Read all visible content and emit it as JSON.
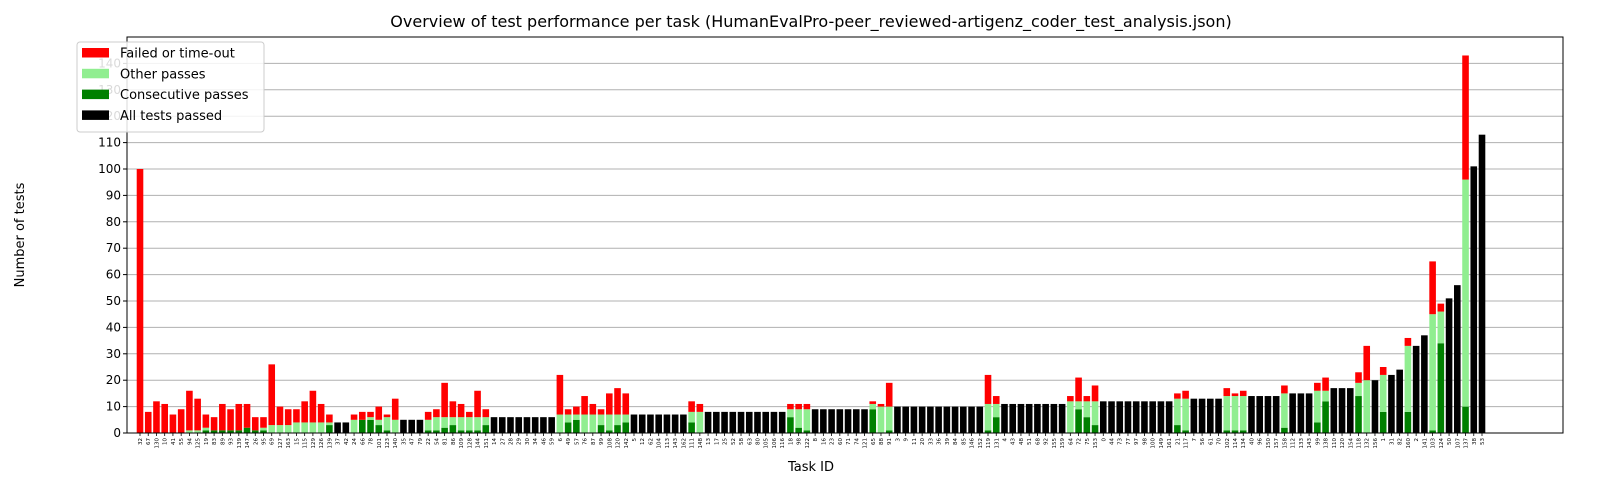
{
  "chart_data": {
    "type": "bar",
    "stacked": true,
    "title": "Overview of test performance per task (HumanEvalPro-peer_reviewed-artigenz_coder_test_analysis.json)",
    "xlabel": "Task ID",
    "ylabel": "Number of tests",
    "ylim": [
      0,
      150
    ],
    "yticks": [
      0,
      10,
      20,
      30,
      40,
      50,
      60,
      70,
      80,
      90,
      100,
      110,
      120,
      130,
      140
    ],
    "grid": "horizontal",
    "legend_position": "top-left",
    "colors": {
      "failed": "#ff0000",
      "other": "#90ee90",
      "consecutive": "#008000",
      "all": "#000000",
      "grid": "#b0b0b0"
    },
    "legend": [
      {
        "key": "failed",
        "label": "Failed or time-out"
      },
      {
        "key": "other",
        "label": "Other passes"
      },
      {
        "key": "consecutive",
        "label": "Consecutive passes"
      },
      {
        "key": "all",
        "label": "All tests passed"
      }
    ],
    "categories": [
      "32",
      "67",
      "130",
      "10",
      "41",
      "55",
      "94",
      "125",
      "19",
      "83",
      "89",
      "93",
      "139",
      "147",
      "26",
      "95",
      "69",
      "127",
      "163",
      "15",
      "115",
      "129",
      "126",
      "139",
      "37",
      "42",
      "24",
      "66",
      "78",
      "101",
      "123",
      "140",
      "35",
      "47",
      "79",
      "22",
      "54",
      "81",
      "86",
      "109",
      "128",
      "144",
      "151",
      "14",
      "27",
      "28",
      "29",
      "30",
      "34",
      "46",
      "59",
      "6",
      "49",
      "57",
      "76",
      "87",
      "99",
      "108",
      "120",
      "142",
      "5",
      "12",
      "62",
      "104",
      "113",
      "143",
      "162",
      "111",
      "148",
      "13",
      "17",
      "25",
      "52",
      "58",
      "63",
      "80",
      "105",
      "106",
      "116",
      "18",
      "98",
      "122",
      "8",
      "16",
      "23",
      "60",
      "71",
      "74",
      "121",
      "65",
      "88",
      "91",
      "3",
      "9",
      "11",
      "20",
      "33",
      "36",
      "39",
      "84",
      "85",
      "146",
      "152",
      "119",
      "131",
      "4",
      "43",
      "48",
      "51",
      "68",
      "92",
      "155",
      "159",
      "64",
      "72",
      "75",
      "153",
      "0",
      "44",
      "73",
      "77",
      "97",
      "98",
      "100",
      "149",
      "161",
      "21",
      "117",
      "7",
      "56",
      "61",
      "70",
      "102",
      "114",
      "134",
      "40",
      "96",
      "150",
      "157",
      "158",
      "112",
      "133",
      "143",
      "99",
      "138",
      "110",
      "120",
      "154",
      "118",
      "132",
      "156",
      "1",
      "31",
      "82",
      "160",
      "2",
      "141",
      "103",
      "124",
      "50",
      "107",
      "137",
      "38",
      "53"
    ],
    "series": [
      {
        "key": "all",
        "name": "All tests passed",
        "values": [
          0,
          0,
          0,
          0,
          0,
          0,
          0,
          0,
          0,
          0,
          0,
          0,
          0,
          0,
          0,
          0,
          0,
          0,
          0,
          0,
          0,
          0,
          0,
          0,
          4,
          4,
          0,
          0,
          0,
          0,
          0,
          0,
          5,
          5,
          5,
          0,
          0,
          0,
          0,
          0,
          0,
          0,
          0,
          6,
          6,
          6,
          6,
          6,
          6,
          6,
          6,
          0,
          0,
          0,
          0,
          0,
          0,
          0,
          0,
          0,
          7,
          7,
          7,
          7,
          7,
          7,
          7,
          0,
          0,
          8,
          8,
          8,
          8,
          8,
          8,
          8,
          8,
          8,
          8,
          0,
          0,
          0,
          9,
          9,
          9,
          9,
          9,
          9,
          9,
          0,
          0,
          0,
          10,
          10,
          10,
          10,
          10,
          10,
          10,
          10,
          10,
          10,
          10,
          0,
          0,
          11,
          11,
          11,
          11,
          11,
          11,
          11,
          11,
          0,
          0,
          0,
          0,
          12,
          12,
          12,
          12,
          12,
          12,
          12,
          12,
          12,
          0,
          0,
          13,
          13,
          13,
          13,
          0,
          0,
          0,
          14,
          14,
          14,
          14,
          0,
          15,
          15,
          15,
          0,
          0,
          17,
          17,
          17,
          0,
          0,
          20,
          0,
          22,
          24,
          0,
          33,
          37,
          0,
          0,
          51,
          56,
          0,
          101,
          113
        ]
      },
      {
        "key": "consecutive",
        "name": "Consecutive passes",
        "values": [
          0,
          0,
          0,
          0,
          0,
          0,
          0,
          0,
          1,
          1,
          1,
          1,
          1,
          2,
          1,
          1,
          0,
          0,
          0,
          0,
          0,
          0,
          0,
          3,
          0,
          0,
          0,
          5,
          5,
          3,
          1,
          0,
          0,
          0,
          0,
          1,
          1,
          2,
          3,
          1,
          1,
          1,
          3,
          0,
          0,
          0,
          0,
          0,
          0,
          0,
          0,
          0,
          4,
          5,
          0,
          0,
          3,
          1,
          3,
          4,
          0,
          0,
          0,
          0,
          0,
          0,
          0,
          4,
          0,
          0,
          0,
          0,
          0,
          0,
          0,
          0,
          0,
          0,
          0,
          6,
          2,
          1,
          0,
          0,
          0,
          0,
          0,
          0,
          0,
          9,
          0,
          1,
          0,
          0,
          0,
          0,
          0,
          0,
          0,
          0,
          0,
          0,
          0,
          1,
          6,
          0,
          0,
          0,
          0,
          0,
          0,
          0,
          0,
          0,
          9,
          6,
          3,
          0,
          0,
          0,
          0,
          0,
          0,
          0,
          0,
          0,
          3,
          1,
          0,
          0,
          0,
          0,
          1,
          1,
          1,
          0,
          0,
          0,
          0,
          2,
          0,
          0,
          0,
          4,
          12,
          0,
          0,
          0,
          14,
          0,
          0,
          8,
          0,
          0,
          8,
          0,
          0,
          1,
          34,
          0,
          0,
          10,
          0,
          0
        ]
      },
      {
        "key": "other",
        "name": "Other passes",
        "values": [
          0,
          0,
          0,
          0,
          0,
          0,
          1,
          1,
          1,
          0,
          0,
          0,
          0,
          0,
          0,
          1,
          3,
          3,
          3,
          4,
          4,
          4,
          4,
          1,
          0,
          0,
          5,
          0,
          1,
          2,
          5,
          5,
          0,
          0,
          0,
          4,
          5,
          4,
          3,
          5,
          5,
          5,
          3,
          0,
          0,
          0,
          0,
          0,
          0,
          0,
          0,
          7,
          3,
          2,
          7,
          7,
          4,
          6,
          4,
          3,
          0,
          0,
          0,
          0,
          0,
          0,
          0,
          4,
          8,
          0,
          0,
          0,
          0,
          0,
          0,
          0,
          0,
          0,
          0,
          3,
          7,
          8,
          0,
          0,
          0,
          0,
          0,
          0,
          0,
          2,
          10,
          9,
          0,
          0,
          0,
          0,
          0,
          0,
          0,
          0,
          0,
          0,
          0,
          10,
          5,
          0,
          0,
          0,
          0,
          0,
          0,
          0,
          0,
          12,
          3,
          6,
          9,
          0,
          0,
          0,
          0,
          0,
          0,
          0,
          0,
          0,
          10,
          12,
          0,
          0,
          0,
          0,
          13,
          13,
          13,
          0,
          0,
          0,
          0,
          13,
          0,
          0,
          0,
          12,
          4,
          0,
          0,
          0,
          5,
          20,
          0,
          14,
          0,
          0,
          25,
          0,
          0,
          44,
          12,
          0,
          0,
          86,
          0,
          0
        ]
      },
      {
        "key": "failed",
        "name": "Failed or time-out",
        "values": [
          100,
          8,
          12,
          11,
          7,
          9,
          15,
          12,
          5,
          5,
          10,
          8,
          10,
          9,
          5,
          4,
          23,
          7,
          6,
          5,
          8,
          12,
          7,
          3,
          0,
          0,
          2,
          3,
          2,
          5,
          1,
          8,
          0,
          0,
          0,
          3,
          3,
          13,
          6,
          5,
          2,
          10,
          3,
          0,
          0,
          0,
          0,
          0,
          0,
          0,
          0,
          15,
          2,
          3,
          7,
          4,
          2,
          8,
          10,
          8,
          0,
          0,
          0,
          0,
          0,
          0,
          0,
          4,
          3,
          0,
          0,
          0,
          0,
          0,
          0,
          0,
          0,
          0,
          0,
          2,
          2,
          2,
          0,
          0,
          0,
          0,
          0,
          0,
          0,
          1,
          1,
          9,
          0,
          0,
          0,
          0,
          0,
          0,
          0,
          0,
          0,
          0,
          0,
          11,
          3,
          0,
          0,
          0,
          0,
          0,
          0,
          0,
          0,
          2,
          9,
          2,
          6,
          0,
          0,
          0,
          0,
          0,
          0,
          0,
          0,
          0,
          2,
          3,
          0,
          0,
          0,
          0,
          3,
          1,
          2,
          0,
          0,
          0,
          0,
          3,
          0,
          0,
          0,
          3,
          5,
          0,
          0,
          0,
          4,
          13,
          0,
          3,
          0,
          0,
          3,
          0,
          0,
          20,
          3,
          0,
          0,
          47,
          0,
          0
        ]
      }
    ]
  }
}
